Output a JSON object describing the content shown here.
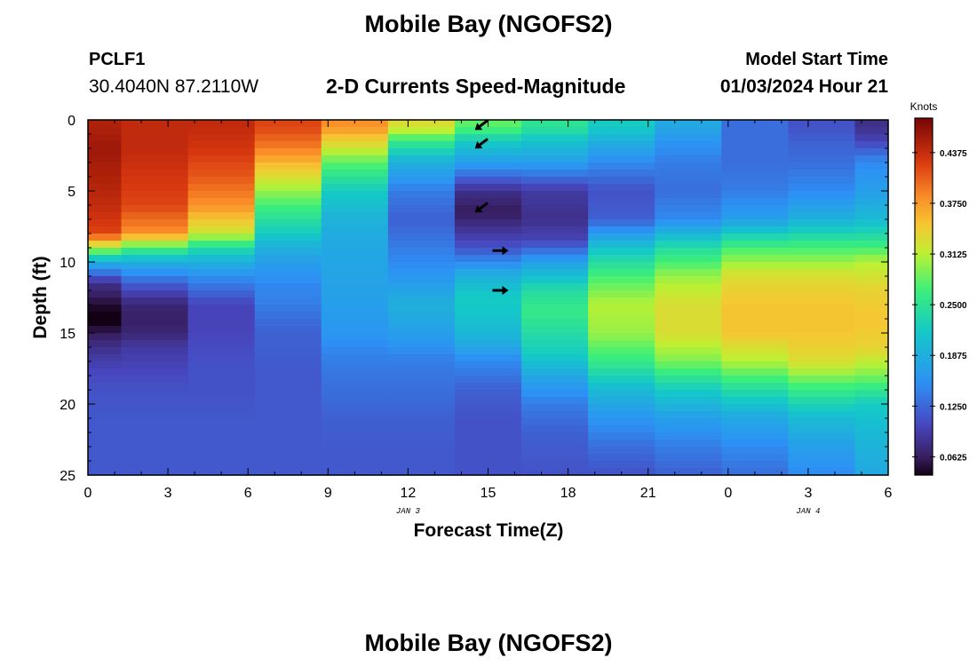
{
  "header": {
    "title": "Mobile Bay (NGOFS2)",
    "station": "PCLF1",
    "coords": "30.4040N  87.2110W",
    "subtitle": "2-D Currents Speed-Magnitude",
    "model_label": "Model Start Time",
    "model_time": "01/03/2024 Hour 21"
  },
  "footer": {
    "title": "Mobile Bay (NGOFS2)"
  },
  "chart_data": {
    "type": "heatmap",
    "xlabel": "Forecast Time(Z)",
    "ylabel": "Depth (ft)",
    "x_tick_labels": [
      "0",
      "3",
      "6",
      "9",
      "12",
      "15",
      "18",
      "21",
      "0",
      "3",
      "6"
    ],
    "x_ticks_hours": [
      0,
      3,
      6,
      9,
      12,
      15,
      18,
      21,
      24,
      27,
      30
    ],
    "date_labels": [
      {
        "text": "JAN 3",
        "hour": 12
      },
      {
        "text": "JAN 4",
        "hour": 27
      }
    ],
    "y_tick_labels": [
      "0",
      "5",
      "10",
      "15",
      "20",
      "25"
    ],
    "y_ticks_ft": [
      0,
      5,
      10,
      15,
      20,
      25
    ],
    "xlim_hours": [
      0,
      30
    ],
    "ylim_ft": [
      0,
      25
    ],
    "colorbar": {
      "title": "Knots",
      "tick_labels": [
        "0.0625",
        "0.1250",
        "0.1875",
        "0.2500",
        "0.3125",
        "0.3750",
        "0.4375"
      ],
      "ticks": [
        0.0625,
        0.125,
        0.1875,
        0.25,
        0.3125,
        0.375,
        0.4375
      ],
      "range": [
        0.04,
        0.48
      ]
    },
    "time_hours": [
      0,
      2.5,
      5,
      7.5,
      10,
      12.5,
      15,
      17.5,
      20,
      22.5,
      25,
      27.5,
      30
    ],
    "depth_rows_ft": [
      0.25,
      0.75,
      1.25,
      1.75,
      2.25,
      2.75,
      3.25,
      3.75,
      4.25,
      4.75,
      5.25,
      5.75,
      6.25,
      6.75,
      7.25,
      7.75,
      8.25,
      8.75,
      9.25,
      9.75,
      10.25,
      10.75,
      11.25,
      11.75,
      12.25,
      12.75,
      13.25,
      13.75,
      14.25,
      14.75,
      15.25,
      15.75,
      16.25,
      16.75,
      17.25,
      17.75,
      18.25,
      18.75,
      19.25,
      19.75,
      20.25,
      20.75,
      21.25,
      21.75,
      22.25,
      22.75,
      23.25,
      23.75,
      24.25,
      24.75
    ],
    "speed_profiles_knots": [
      {
        "time": 0,
        "depth": [
          0.5,
          2,
          4,
          6,
          8,
          9,
          10,
          11.5,
          13,
          14,
          15,
          16,
          17.5,
          19,
          21,
          25
        ],
        "speed": [
          0.45,
          0.46,
          0.45,
          0.44,
          0.42,
          0.31,
          0.19,
          0.08,
          0.05,
          0.03,
          0.06,
          0.08,
          0.1,
          0.11,
          0.115,
          0.115
        ]
      },
      {
        "time": 2.5,
        "depth": [
          0.5,
          2,
          4,
          6,
          8,
          9,
          10,
          11.5,
          13,
          14,
          15,
          16,
          17.5,
          19,
          21,
          25
        ],
        "speed": [
          0.44,
          0.44,
          0.43,
          0.42,
          0.38,
          0.27,
          0.19,
          0.12,
          0.07,
          0.065,
          0.07,
          0.09,
          0.1,
          0.11,
          0.115,
          0.115
        ]
      },
      {
        "time": 5,
        "depth": [
          0.5,
          2,
          4,
          6,
          8,
          9,
          10,
          11.5,
          13,
          14,
          15,
          16,
          17.5,
          19,
          21,
          25
        ],
        "speed": [
          0.44,
          0.43,
          0.41,
          0.38,
          0.32,
          0.24,
          0.19,
          0.14,
          0.1,
          0.1,
          0.1,
          0.105,
          0.11,
          0.11,
          0.115,
          0.115
        ]
      },
      {
        "time": 7.5,
        "depth": [
          0.5,
          2,
          4,
          6,
          8,
          9,
          10,
          11.5,
          13,
          14,
          15,
          16,
          17.5,
          19,
          21,
          25
        ],
        "speed": [
          0.42,
          0.39,
          0.33,
          0.27,
          0.22,
          0.19,
          0.17,
          0.15,
          0.14,
          0.13,
          0.12,
          0.12,
          0.115,
          0.115,
          0.115,
          0.115
        ]
      },
      {
        "time": 10,
        "depth": [
          0.5,
          1.5,
          3,
          5,
          7,
          9,
          11,
          13,
          15,
          17,
          19,
          21,
          23,
          25
        ],
        "speed": [
          0.38,
          0.34,
          0.28,
          0.22,
          0.19,
          0.18,
          0.175,
          0.17,
          0.16,
          0.14,
          0.13,
          0.12,
          0.115,
          0.115
        ]
      },
      {
        "time": 12.5,
        "depth": [
          0.5,
          1.5,
          3,
          5,
          7,
          9,
          11,
          13,
          15,
          17,
          19,
          21,
          23,
          25
        ],
        "speed": [
          0.33,
          0.26,
          0.19,
          0.14,
          0.12,
          0.14,
          0.16,
          0.19,
          0.17,
          0.14,
          0.13,
          0.12,
          0.115,
          0.115
        ]
      },
      {
        "time": 15,
        "depth": [
          0.5,
          1.5,
          3,
          5,
          6.5,
          8,
          9,
          11,
          12.5,
          14,
          15.5,
          17,
          19,
          21,
          23,
          25
        ],
        "speed": [
          0.28,
          0.22,
          0.17,
          0.08,
          0.06,
          0.09,
          0.11,
          0.19,
          0.22,
          0.21,
          0.19,
          0.15,
          0.12,
          0.11,
          0.11,
          0.11
        ]
      },
      {
        "time": 17.5,
        "depth": [
          0.5,
          1.5,
          3,
          5,
          7,
          8.5,
          10,
          12,
          13.5,
          15,
          16.5,
          18,
          20,
          22,
          25
        ],
        "speed": [
          0.25,
          0.21,
          0.17,
          0.09,
          0.08,
          0.1,
          0.17,
          0.24,
          0.26,
          0.24,
          0.22,
          0.18,
          0.14,
          0.12,
          0.11
        ]
      },
      {
        "time": 20,
        "depth": [
          0.5,
          1.5,
          3,
          5,
          7,
          9,
          11,
          13,
          15,
          17,
          19,
          21,
          23,
          25
        ],
        "speed": [
          0.22,
          0.19,
          0.15,
          0.11,
          0.12,
          0.21,
          0.27,
          0.31,
          0.3,
          0.26,
          0.2,
          0.16,
          0.13,
          0.11
        ]
      },
      {
        "time": 22.5,
        "depth": [
          0.5,
          1.5,
          3,
          5,
          7,
          9,
          11,
          13,
          15,
          17,
          19,
          21,
          23,
          25
        ],
        "speed": [
          0.18,
          0.16,
          0.14,
          0.13,
          0.15,
          0.24,
          0.3,
          0.33,
          0.33,
          0.29,
          0.22,
          0.17,
          0.14,
          0.12
        ]
      },
      {
        "time": 25,
        "depth": [
          0.5,
          1.5,
          3,
          5,
          7,
          9,
          11,
          13,
          15,
          17,
          19,
          21,
          23,
          25
        ],
        "speed": [
          0.13,
          0.13,
          0.13,
          0.14,
          0.17,
          0.27,
          0.33,
          0.35,
          0.35,
          0.31,
          0.24,
          0.18,
          0.15,
          0.13
        ]
      },
      {
        "time": 27.5,
        "depth": [
          0.5,
          1.5,
          3,
          5,
          7,
          9,
          11,
          13,
          15,
          17,
          19,
          21,
          23,
          25
        ],
        "speed": [
          0.11,
          0.12,
          0.13,
          0.15,
          0.19,
          0.27,
          0.33,
          0.35,
          0.35,
          0.33,
          0.26,
          0.2,
          0.17,
          0.15
        ]
      },
      {
        "time": 30,
        "depth": [
          0.5,
          1.5,
          3,
          5,
          7,
          8.5,
          10,
          12,
          14,
          16,
          18,
          20,
          22,
          25
        ],
        "speed": [
          0.08,
          0.1,
          0.15,
          0.17,
          0.2,
          0.25,
          0.31,
          0.34,
          0.35,
          0.34,
          0.29,
          0.22,
          0.2,
          0.18
        ]
      }
    ],
    "current_arrows": [
      {
        "time": 14.8,
        "depth": 0.3,
        "direction": "southwest"
      },
      {
        "time": 14.8,
        "depth": 1.6,
        "direction": "southwest"
      },
      {
        "time": 14.8,
        "depth": 6.1,
        "direction": "southwest"
      },
      {
        "time": 15.4,
        "depth": 9.2,
        "direction": "east"
      },
      {
        "time": 15.4,
        "depth": 12.0,
        "direction": "east"
      }
    ],
    "grid": false
  }
}
